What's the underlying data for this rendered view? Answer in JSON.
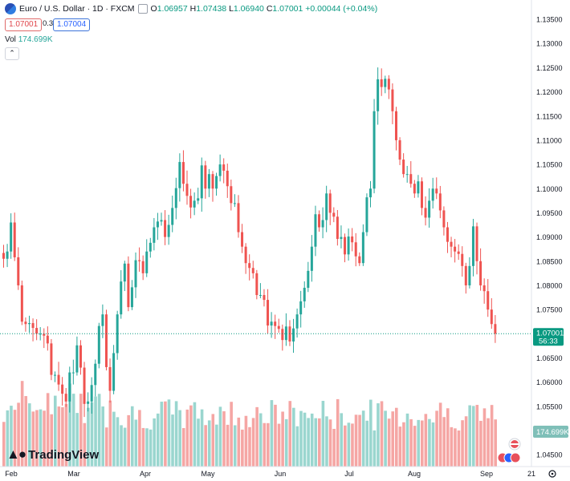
{
  "header": {
    "symbol_title": "Euro / U.S. Dollar · 1D · FXCM",
    "ohlc": {
      "o_label": "O",
      "o": "1.06957",
      "h_label": "H",
      "h": "1.07438",
      "l_label": "L",
      "l": "1.06940",
      "c_label": "C",
      "c": "1.07001",
      "change": "+0.00044 (+0.04%)"
    },
    "sell_price": "1.07001",
    "spread": "0.3",
    "buy_price": "1.07004",
    "volume_label": "Vol",
    "volume_value": "174.699K"
  },
  "watermark": "TradingView",
  "colors": {
    "up": "#26a69a",
    "down": "#ef5350",
    "up_vol": "#9ad6cf",
    "down_vol": "#f5a6a4",
    "accent": "#089981"
  },
  "chart_data": {
    "type": "candlestick",
    "title": "Euro / U.S. Dollar · 1D · FXCM",
    "xlabels": [
      "Feb",
      "Mar",
      "Apr",
      "May",
      "Jun",
      "Jul",
      "Aug",
      "Sep",
      "21"
    ],
    "ylabels": [
      "1.13500",
      "1.13000",
      "1.12500",
      "1.12000",
      "1.11500",
      "1.11000",
      "1.10500",
      "1.10000",
      "1.09500",
      "1.09000",
      "1.08500",
      "1.08000",
      "1.07500",
      "1.07000",
      "1.06500",
      "1.06000",
      "1.05500",
      "1.05000",
      "1.04500"
    ],
    "ylim": [
      1.0442,
      1.137
    ],
    "last_price": "1.07001",
    "countdown": "56:33",
    "last_volume": "174.699K",
    "closes": [
      1.0855,
      1.087,
      1.093,
      1.0858,
      1.08,
      1.0725,
      1.072,
      1.0722,
      1.0712,
      1.07,
      1.07,
      1.0696,
      1.068,
      1.0615,
      1.0615,
      1.0595,
      1.0576,
      1.056,
      1.062,
      1.062,
      1.0676,
      1.063,
      1.0555,
      1.056,
      1.0594,
      1.0638,
      1.0716,
      1.074,
      1.0631,
      1.0582,
      1.066,
      1.074,
      1.0808,
      1.0845,
      1.0755,
      1.0796,
      1.0852,
      1.085,
      1.0825,
      1.087,
      1.0888,
      1.092,
      1.0932,
      1.0935,
      1.09,
      1.0925,
      1.096,
      1.1001,
      1.1055,
      1.101,
      1.0985,
      1.0961,
      1.0975,
      1.098,
      1.1048,
      1.1,
      1.103,
      1.1,
      1.1026,
      1.105,
      1.1037,
      1.1005,
      1.097,
      1.097,
      1.091,
      1.088,
      1.0846,
      1.0836,
      1.0825,
      1.078,
      1.078,
      1.077,
      1.0717,
      1.0725,
      1.0716,
      1.071,
      1.0687,
      1.0715,
      1.0684,
      1.0711,
      1.074,
      1.0767,
      1.0795,
      1.083,
      1.088,
      1.0947,
      1.092,
      1.0935,
      1.099,
      1.095,
      1.0942,
      1.0896,
      1.09,
      1.0864,
      1.0901,
      1.0889,
      1.086,
      1.0846,
      1.091,
      1.0982,
      1.1,
      1.116,
      1.1226,
      1.121,
      1.1227,
      1.1205,
      1.116,
      1.11,
      1.106,
      1.103,
      1.103,
      1.101,
      1.099,
      1.1015,
      1.096,
      1.094,
      1.0975,
      1.1,
      1.099,
      1.0955,
      1.092,
      1.089,
      1.088,
      1.087,
      1.0865,
      1.084,
      1.08,
      1.084,
      1.0922,
      1.085,
      1.08,
      1.0788,
      1.075,
      1.072,
      1.07
    ]
  }
}
